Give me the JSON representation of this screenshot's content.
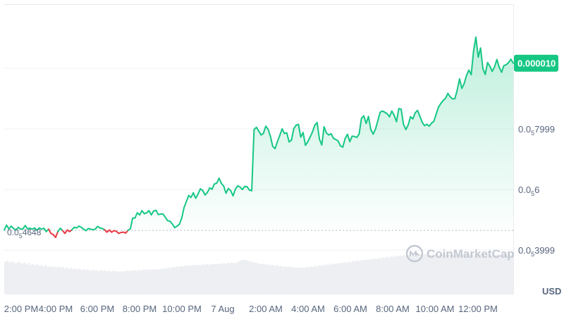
{
  "chart_data": {
    "type": "line",
    "currency_label": "USD",
    "watermark": "CoinMarketCap",
    "start_label": {
      "prefix": "0.0",
      "sub": "5",
      "digits": "4648"
    },
    "current_label": "0.000010",
    "y_ticks": [
      {
        "prefix": "0.0",
        "sub": "5",
        "digits": "3999",
        "value": 3.999e-06
      },
      {
        "prefix": "0.0",
        "sub": "5",
        "digits": "6",
        "value": 6e-06
      },
      {
        "prefix": "0.0",
        "sub": "5",
        "digits": "7999",
        "value": 7.999e-06
      },
      {
        "prefix": "",
        "sub": "",
        "digits": "",
        "value": 1e-05
      }
    ],
    "ylim": [
      2e-06,
      1.14e-05
    ],
    "x_ticks": [
      "2:00 PM",
      "4:00 PM",
      "6:00 PM",
      "8:00 PM",
      "10:00 PM",
      "7 Aug",
      "2:00 AM",
      "4:00 AM",
      "6:00 AM",
      "8:00 AM",
      "10:00 AM",
      "12:00 PM"
    ],
    "start_value": 4.648e-06,
    "colors": {
      "up": "#16c784",
      "down": "#ea3943",
      "badge": "#16c784",
      "fill_top": "#16c784"
    },
    "series": [
      {
        "values": [
          4.66e-06,
          4.82e-06,
          4.7e-06,
          4.79e-06,
          4.71e-06,
          4.66e-06,
          4.75e-06,
          4.69e-06,
          4.7e-06,
          4.81e-06,
          4.7e-06,
          4.72e-06,
          4.69e-06,
          4.73e-06,
          4.65e-06,
          4.73e-06,
          4.69e-06,
          4.72e-06,
          4.61e-06,
          4.69e-06,
          4.55e-06,
          4.51e-06,
          4.42e-06,
          4.61e-06,
          4.72e-06,
          4.64e-06,
          4.55e-06,
          4.66e-06,
          4.61e-06,
          4.67e-06,
          4.75e-06,
          4.73e-06,
          4.79e-06,
          4.75e-06,
          4.69e-06,
          4.64e-06,
          4.71e-06,
          4.69e-06,
          4.67e-06,
          4.69e-06,
          4.78e-06,
          4.73e-06,
          4.71e-06,
          4.67e-06,
          4.59e-06,
          4.66e-06,
          4.59e-06,
          4.64e-06,
          4.62e-06,
          4.55e-06,
          4.58e-06,
          4.59e-06,
          4.56e-06,
          4.65e-06,
          4.7e-06,
          5.05e-06,
          5.06e-06,
          5.23e-06,
          5.16e-06,
          5.3e-06,
          5.2e-06,
          5.23e-06,
          5.3e-06,
          5.16e-06,
          5.29e-06,
          5.31e-06,
          5.17e-06,
          5.19e-06,
          5.19e-06,
          5.08e-06,
          4.97e-06,
          4.95e-06,
          4.86e-06,
          4.74e-06,
          4.79e-06,
          4.85e-06,
          5.05e-06,
          5.4e-06,
          5.6e-06,
          5.8e-06,
          5.74e-06,
          5.89e-06,
          5.71e-06,
          5.85e-06,
          6.02e-06,
          5.97e-06,
          5.82e-06,
          5.9e-06,
          6.05e-06,
          6.01e-06,
          6.18e-06,
          6.21e-06,
          6.37e-06,
          6.2e-06,
          6.11e-06,
          5.88e-06,
          6.03e-06,
          5.96e-06,
          5.79e-06,
          6.01e-06,
          6.12e-06,
          6.08e-06,
          6e-06,
          6.1e-06,
          6.09e-06,
          5.98e-06,
          5.96e-06,
          7.98e-06,
          8.05e-06,
          7.93e-06,
          7.8e-06,
          7.85e-06,
          8.09e-06,
          7.99e-06,
          7.76e-06,
          7.42e-06,
          7.35e-06,
          7.58e-06,
          7.78e-06,
          8e-06,
          7.85e-06,
          7.87e-06,
          7.57e-06,
          7.63e-06,
          8.01e-06,
          8.12e-06,
          8.15e-06,
          7.73e-06,
          7.88e-06,
          7.46e-06,
          7.57e-06,
          7.73e-06,
          7.9e-06,
          8.12e-06,
          8.21e-06,
          7.66e-06,
          7.47e-06,
          8.07e-06,
          7.86e-06,
          7.8e-06,
          7.84e-06,
          7.69e-06,
          7.65e-06,
          7.6e-06,
          7.44e-06,
          7.4e-06,
          7.68e-06,
          7.82e-06,
          7.58e-06,
          7.76e-06,
          7.75e-06,
          7.72e-06,
          7.83e-06,
          8.35e-06,
          8.43e-06,
          8.18e-06,
          8.41e-06,
          7.98e-06,
          7.83e-06,
          7.99e-06,
          8.27e-06,
          8.55e-06,
          8.59e-06,
          8.55e-06,
          8.5e-06,
          8.4e-06,
          8.59e-06,
          8.45e-06,
          8.24e-06,
          8.67e-06,
          8.65e-06,
          8.15e-06,
          7.98e-06,
          8.13e-06,
          8.4e-06,
          8.33e-06,
          8.53e-06,
          8.61e-06,
          8.42e-06,
          8.22e-06,
          8.11e-06,
          8.15e-06,
          8.09e-06,
          8.19e-06,
          8.25e-06,
          8.49e-06,
          8.72e-06,
          8.84e-06,
          8.94e-06,
          9.01e-06,
          9.17e-06,
          9.06e-06,
          8.99e-06,
          9e-06,
          9.28e-06,
          9.65e-06,
          9.34e-06,
          9.5e-06,
          9.77e-06,
          9.94e-06,
          9.79e-06,
          1.057e-05,
          1.103e-05,
          1.037e-05,
          1.067e-05,
          9.99e-06,
          9.8e-06,
          1.019e-05,
          1.007e-05,
          9.9e-06,
          1.005e-05,
          1.029e-05,
          1.004e-05,
          9.87e-06,
          1.009e-05,
          1.012e-05,
          1.019e-05,
          1.03e-05,
          1.017e-05
        ]
      }
    ],
    "volume": [
      62,
      64,
      60,
      63,
      61,
      59,
      62,
      60,
      58,
      60,
      57,
      59,
      56,
      58,
      55,
      57,
      54,
      56,
      53,
      55,
      52,
      54,
      52,
      53,
      51,
      53,
      50,
      52,
      49,
      51,
      48,
      50,
      48,
      49,
      47,
      49,
      46,
      48,
      46,
      47,
      45,
      47,
      45,
      46,
      44,
      46,
      44,
      45,
      44,
      45,
      43,
      45,
      43,
      44,
      43,
      44,
      43,
      45,
      44,
      45,
      44,
      46,
      45,
      46,
      45,
      47,
      46,
      47,
      46,
      48,
      47,
      48,
      47,
      49,
      48,
      50,
      49,
      51,
      50,
      52,
      51,
      53,
      52,
      54,
      53,
      55,
      54,
      55,
      54,
      56,
      55,
      56,
      55,
      57,
      56,
      57,
      56,
      58,
      57,
      58,
      57,
      59,
      58,
      59,
      58,
      60,
      59,
      60,
      59,
      60,
      62,
      64,
      66,
      65,
      64,
      63,
      62,
      61,
      60,
      59,
      58,
      57,
      58,
      56,
      57,
      55,
      56,
      54,
      55,
      53,
      54,
      52,
      53,
      52,
      53,
      51,
      52,
      50,
      51,
      50,
      51,
      50,
      52,
      51,
      53,
      52,
      54,
      53,
      55,
      54,
      56,
      55,
      57,
      56,
      58,
      57,
      59,
      58,
      60,
      59,
      61,
      60,
      62,
      61,
      63,
      62,
      64,
      63,
      65,
      64,
      66,
      65,
      67,
      66,
      68,
      67,
      69,
      68,
      70,
      69,
      71,
      70,
      72,
      71,
      73,
      72,
      74,
      73,
      74,
      73,
      75,
      74,
      75,
      74,
      76,
      75,
      76,
      75,
      76,
      75,
      76,
      75,
      76,
      75,
      76,
      75,
      76,
      75,
      76,
      75,
      76,
      75,
      76,
      75,
      76,
      75,
      76,
      75,
      76,
      75,
      76,
      75,
      76,
      75,
      76,
      75,
      76,
      75,
      76,
      75,
      76,
      75,
      76,
      75,
      76,
      75,
      76,
      75,
      76,
      75
    ]
  }
}
